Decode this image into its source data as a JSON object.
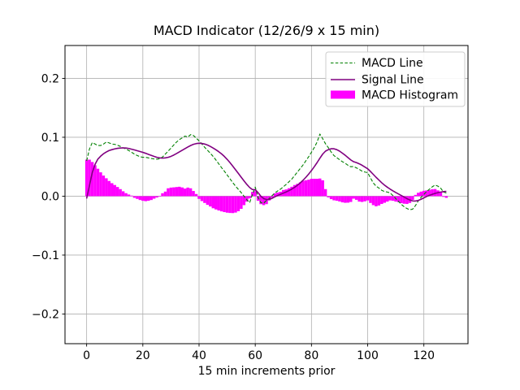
{
  "figure": {
    "background": "#ffffff",
    "frame_color": "#000000",
    "grid_color": "#b0b0b0"
  },
  "chart_data": {
    "type": "line",
    "title": "MACD Indicator (12/26/9 x 15 min)",
    "xlabel": "15 min increments prior",
    "ylabel": "",
    "x_start": 0,
    "x_step": 1,
    "n_points": 129,
    "xlim": [
      -7.7,
      135.7
    ],
    "ylim": [
      -0.2504,
      0.2558
    ],
    "xticks": [
      0,
      20,
      40,
      60,
      80,
      100,
      120
    ],
    "xtick_labels": [
      "0",
      "20",
      "40",
      "60",
      "80",
      "100",
      "120"
    ],
    "yticks": [
      0.2,
      0.1,
      0.0,
      -0.1,
      -0.2
    ],
    "ytick_labels": [
      "0.2",
      "0.1",
      "0.0",
      "−0.1",
      "−0.2"
    ],
    "grid": true,
    "legend_position": "upper right",
    "series": [
      {
        "name": "MACD Line",
        "type": "line",
        "style": "dashed",
        "color": "#008000",
        "values": [
          0.06,
          0.08,
          0.091,
          0.0885,
          0.086,
          0.086,
          0.0885,
          0.092,
          0.0905,
          0.0885,
          0.088,
          0.0865,
          0.0845,
          0.082,
          0.08,
          0.0775,
          0.0745,
          0.0715,
          0.069,
          0.067,
          0.066,
          0.066,
          0.065,
          0.064,
          0.0632,
          0.0628,
          0.0635,
          0.0665,
          0.0715,
          0.0765,
          0.0815,
          0.087,
          0.092,
          0.096,
          0.099,
          0.102,
          0.1005,
          0.1045,
          0.103,
          0.0985,
          0.094,
          0.0885,
          0.083,
          0.078,
          0.073,
          0.0675,
          0.0615,
          0.055,
          0.0485,
          0.0425,
          0.036,
          0.0295,
          0.023,
          0.017,
          0.0115,
          0.006,
          0.0,
          -0.006,
          -0.011,
          0.003,
          0.0155,
          -0.002,
          -0.011,
          -0.012,
          -0.007,
          -0.004,
          0.001,
          0.0055,
          0.009,
          0.012,
          0.016,
          0.02,
          0.0245,
          0.029,
          0.035,
          0.041,
          0.047,
          0.053,
          0.06,
          0.067,
          0.0745,
          0.0825,
          0.092,
          0.1055,
          0.0975,
          0.089,
          0.0825,
          0.075,
          0.069,
          0.0655,
          0.062,
          0.0585,
          0.056,
          0.0525,
          0.05,
          0.0505,
          0.048,
          0.0455,
          0.0425,
          0.041,
          0.04,
          0.031,
          0.0225,
          0.017,
          0.0138,
          0.01,
          0.008,
          0.007,
          0.0055,
          0.001,
          -0.004,
          -0.009,
          -0.014,
          -0.018,
          -0.021,
          -0.023,
          -0.022,
          -0.016,
          -0.008,
          -0.002,
          0.003,
          0.008,
          0.012,
          0.016,
          0.019,
          0.017,
          0.0135,
          0.007,
          0.0055
        ]
      },
      {
        "name": "Signal Line",
        "type": "line",
        "style": "solid",
        "color": "#800080",
        "values": [
          -0.004,
          0.018,
          0.04,
          0.054,
          0.063,
          0.068,
          0.072,
          0.075,
          0.0775,
          0.079,
          0.0803,
          0.0812,
          0.0818,
          0.082,
          0.0818,
          0.081,
          0.0798,
          0.0785,
          0.0772,
          0.0758,
          0.0744,
          0.0728,
          0.071,
          0.0692,
          0.0675,
          0.066,
          0.065,
          0.0646,
          0.065,
          0.066,
          0.0676,
          0.0698,
          0.0724,
          0.0752,
          0.078,
          0.0808,
          0.0835,
          0.086,
          0.088,
          0.0893,
          0.0898,
          0.0895,
          0.0885,
          0.0868,
          0.0845,
          0.0818,
          0.0788,
          0.0755,
          0.0718,
          0.0675,
          0.0625,
          0.057,
          0.051,
          0.0448,
          0.0385,
          0.0322,
          0.026,
          0.02,
          0.0148,
          0.0112,
          0.011,
          0.006,
          0.0,
          -0.004,
          -0.0058,
          -0.0055,
          -0.0035,
          -0.001,
          0.0012,
          0.0032,
          0.0052,
          0.0072,
          0.0095,
          0.012,
          0.015,
          0.0185,
          0.0225,
          0.027,
          0.032,
          0.0375,
          0.0435,
          0.05,
          0.057,
          0.0645,
          0.0715,
          0.0765,
          0.079,
          0.0805,
          0.0805,
          0.079,
          0.0765,
          0.073,
          0.0695,
          0.0655,
          0.0615,
          0.0585,
          0.057,
          0.055,
          0.0525,
          0.0495,
          0.0465,
          0.042,
          0.037,
          0.032,
          0.0274,
          0.0228,
          0.0188,
          0.0152,
          0.012,
          0.009,
          0.0062,
          0.0036,
          0.001,
          -0.0015,
          -0.0042,
          -0.0065,
          -0.008,
          -0.0082,
          -0.0072,
          -0.0052,
          -0.0028,
          -0.0005,
          0.0015,
          0.0032,
          0.0048,
          0.006,
          0.007,
          0.0078,
          0.0082
        ]
      },
      {
        "name": "MACD Histogram",
        "type": "bar",
        "color": "#ff00ff",
        "values": [
          0.062,
          0.062,
          0.058,
          0.0525,
          0.0466,
          0.0405,
          0.035,
          0.0304,
          0.0258,
          0.0221,
          0.019,
          0.0156,
          0.012,
          0.0083,
          0.0051,
          0.0028,
          0.001,
          -0.0028,
          -0.0046,
          -0.0065,
          -0.0078,
          -0.0085,
          -0.0078,
          -0.0065,
          -0.0042,
          -0.0022,
          -0.0008,
          0.005,
          0.0078,
          0.0134,
          0.0146,
          0.015,
          0.0155,
          0.016,
          0.0148,
          0.0129,
          0.0146,
          0.0134,
          0.0088,
          0.0037,
          -0.0046,
          -0.0083,
          -0.0115,
          -0.0147,
          -0.0175,
          -0.0205,
          -0.0225,
          -0.0243,
          -0.0258,
          -0.027,
          -0.028,
          -0.0285,
          -0.0287,
          -0.0278,
          -0.0255,
          -0.0215,
          -0.0152,
          -0.0092,
          -0.0038,
          0.0072,
          0.0085,
          -0.0078,
          -0.0135,
          -0.0152,
          -0.0135,
          -0.0072,
          -0.0025,
          0.0048,
          0.0062,
          0.0075,
          0.0105,
          0.0115,
          0.0135,
          0.016,
          0.019,
          0.021,
          0.0235,
          0.026,
          0.027,
          0.028,
          0.0295,
          0.0295,
          0.0295,
          0.03,
          0.027,
          0.012,
          -0.002,
          -0.005,
          -0.007,
          -0.0078,
          -0.009,
          -0.0105,
          -0.0112,
          -0.011,
          -0.0098,
          -0.0042,
          -0.0062,
          -0.0092,
          -0.0098,
          -0.0088,
          -0.0072,
          -0.0115,
          -0.0152,
          -0.0172,
          -0.0158,
          -0.0132,
          -0.0112,
          -0.0092,
          -0.0072,
          -0.0078,
          -0.0092,
          -0.0102,
          -0.0118,
          -0.0128,
          -0.0132,
          -0.0115,
          -0.0062,
          0.0022,
          0.0058,
          0.0078,
          0.0092,
          0.0098,
          0.0105,
          0.0118,
          0.0122,
          0.0098,
          0.0062,
          -0.0012,
          -0.0028
        ]
      }
    ]
  }
}
